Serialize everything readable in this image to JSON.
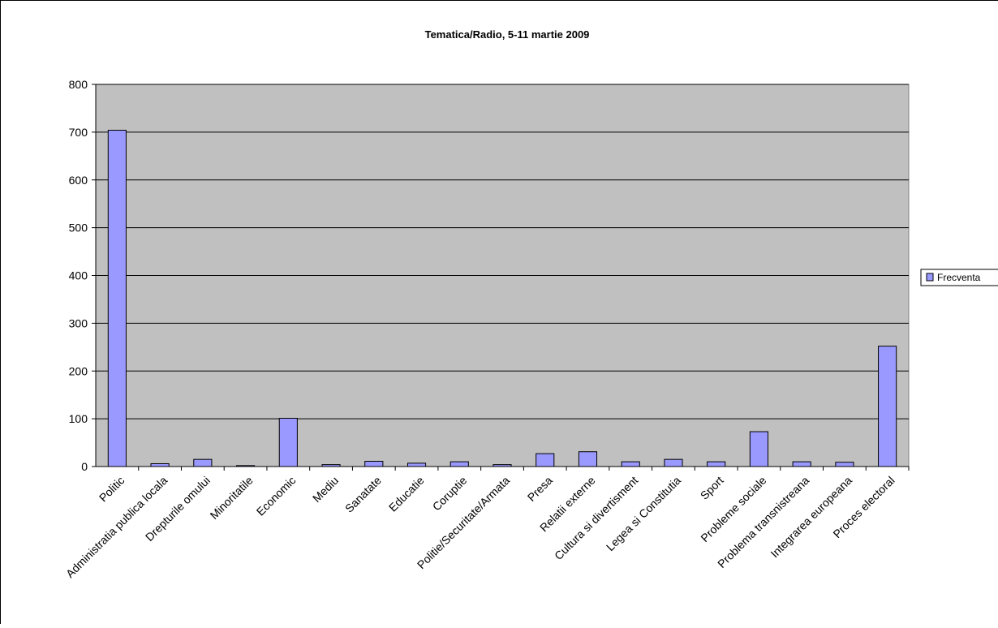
{
  "chart_data": {
    "type": "bar",
    "title": "Tematica/Radio, 5-11 martie 2009",
    "xlabel": "",
    "ylabel": "",
    "ylim": [
      0,
      800
    ],
    "yticks": [
      0,
      100,
      200,
      300,
      400,
      500,
      600,
      700,
      800
    ],
    "grid": true,
    "legend_position": "right",
    "categories": [
      "Politic",
      "Administratia publica locala",
      "Drepturile omului",
      "Minoritatile",
      "Economic",
      "Mediu",
      "Sanatate",
      "Educatie",
      "Coruptie",
      "Politie/Securitate/Armata",
      "Presa",
      "Relatii externe",
      "Cultura si divertisment",
      "Legea si Constitutia",
      "Sport",
      "Probleme sociale",
      "Problema transnistreana",
      "Integrarea europeana",
      "Proces electoral"
    ],
    "series": [
      {
        "name": "Frecventa",
        "values": [
          704,
          6,
          15,
          2,
          101,
          4,
          11,
          7,
          10,
          4,
          27,
          31,
          10,
          15,
          10,
          73,
          10,
          9,
          252
        ],
        "color": "#9999ff"
      }
    ],
    "colors": {
      "plot_background": "#c0c0c0",
      "bar_border": "#000000",
      "gridline": "#000000"
    }
  }
}
